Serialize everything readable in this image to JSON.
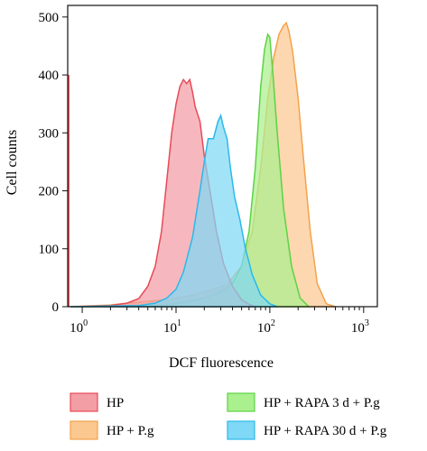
{
  "chart_data": {
    "type": "area",
    "xlabel": "DCF fluorescence",
    "ylabel": "Cell counts",
    "xscale": "log",
    "xlim": [
      0.7,
      1400
    ],
    "ylim": [
      0,
      520
    ],
    "grid": false,
    "legend_placement": "bottom",
    "x_ticks": [
      {
        "value": 1,
        "base": "10",
        "exp": "0"
      },
      {
        "value": 10,
        "base": "10",
        "exp": "1"
      },
      {
        "value": 100,
        "base": "10",
        "exp": "2"
      },
      {
        "value": 1000,
        "base": "10",
        "exp": "3"
      }
    ],
    "y_ticks": [
      0,
      100,
      200,
      300,
      400,
      500
    ],
    "series": [
      {
        "name": "HP + P.g",
        "color": "#f5a24a",
        "fill": "#fbc890",
        "points": [
          [
            0.75,
            0
          ],
          [
            2,
            3
          ],
          [
            4,
            8
          ],
          [
            8,
            12
          ],
          [
            15,
            20
          ],
          [
            25,
            30
          ],
          [
            35,
            38
          ],
          [
            50,
            70
          ],
          [
            65,
            130
          ],
          [
            80,
            240
          ],
          [
            95,
            360
          ],
          [
            110,
            430
          ],
          [
            125,
            470
          ],
          [
            140,
            485
          ],
          [
            150,
            490
          ],
          [
            160,
            475
          ],
          [
            175,
            440
          ],
          [
            200,
            360
          ],
          [
            230,
            250
          ],
          [
            270,
            130
          ],
          [
            320,
            40
          ],
          [
            400,
            5
          ],
          [
            500,
            0
          ]
        ]
      },
      {
        "name": "HP + RAPA 3 d + P.g",
        "color": "#5fd145",
        "fill": "#aaf08f",
        "points": [
          [
            0.75,
            0
          ],
          [
            5,
            2
          ],
          [
            10,
            5
          ],
          [
            20,
            15
          ],
          [
            30,
            25
          ],
          [
            40,
            40
          ],
          [
            50,
            70
          ],
          [
            60,
            130
          ],
          [
            70,
            240
          ],
          [
            80,
            380
          ],
          [
            88,
            445
          ],
          [
            95,
            470
          ],
          [
            100,
            465
          ],
          [
            108,
            400
          ],
          [
            120,
            300
          ],
          [
            140,
            170
          ],
          [
            170,
            70
          ],
          [
            210,
            15
          ],
          [
            260,
            0
          ]
        ]
      },
      {
        "name": "HP",
        "color": "#e84a57",
        "fill": "#f39da5",
        "points": [
          [
            0.75,
            0
          ],
          [
            2,
            2
          ],
          [
            3,
            6
          ],
          [
            4,
            14
          ],
          [
            5,
            35
          ],
          [
            6,
            70
          ],
          [
            7,
            130
          ],
          [
            8,
            220
          ],
          [
            9,
            300
          ],
          [
            10,
            350
          ],
          [
            11,
            380
          ],
          [
            12,
            392
          ],
          [
            13,
            385
          ],
          [
            14,
            392
          ],
          [
            15,
            370
          ],
          [
            16,
            345
          ],
          [
            18,
            320
          ],
          [
            20,
            260
          ],
          [
            23,
            200
          ],
          [
            27,
            130
          ],
          [
            32,
            75
          ],
          [
            40,
            35
          ],
          [
            50,
            12
          ],
          [
            60,
            4
          ],
          [
            70,
            0
          ]
        ]
      },
      {
        "name": "HP + RAPA 30 d + P.g",
        "color": "#2bb9ea",
        "fill": "#7fd8f5",
        "points": [
          [
            0.75,
            0
          ],
          [
            4,
            2
          ],
          [
            6,
            6
          ],
          [
            8,
            15
          ],
          [
            10,
            30
          ],
          [
            12,
            60
          ],
          [
            15,
            120
          ],
          [
            18,
            200
          ],
          [
            20,
            250
          ],
          [
            22,
            290
          ],
          [
            25,
            290
          ],
          [
            28,
            320
          ],
          [
            30,
            330
          ],
          [
            32,
            310
          ],
          [
            35,
            290
          ],
          [
            38,
            240
          ],
          [
            42,
            190
          ],
          [
            48,
            150
          ],
          [
            55,
            100
          ],
          [
            65,
            55
          ],
          [
            80,
            20
          ],
          [
            100,
            5
          ],
          [
            120,
            0
          ]
        ]
      }
    ],
    "legend": [
      {
        "label": "HP",
        "series": 2
      },
      {
        "label": "HP + RAPA 3 d + P.g",
        "series": 1
      },
      {
        "label": "HP + P.g",
        "series": 0
      },
      {
        "label": "HP + RAPA 30 d + P.g",
        "series": 3
      }
    ]
  }
}
